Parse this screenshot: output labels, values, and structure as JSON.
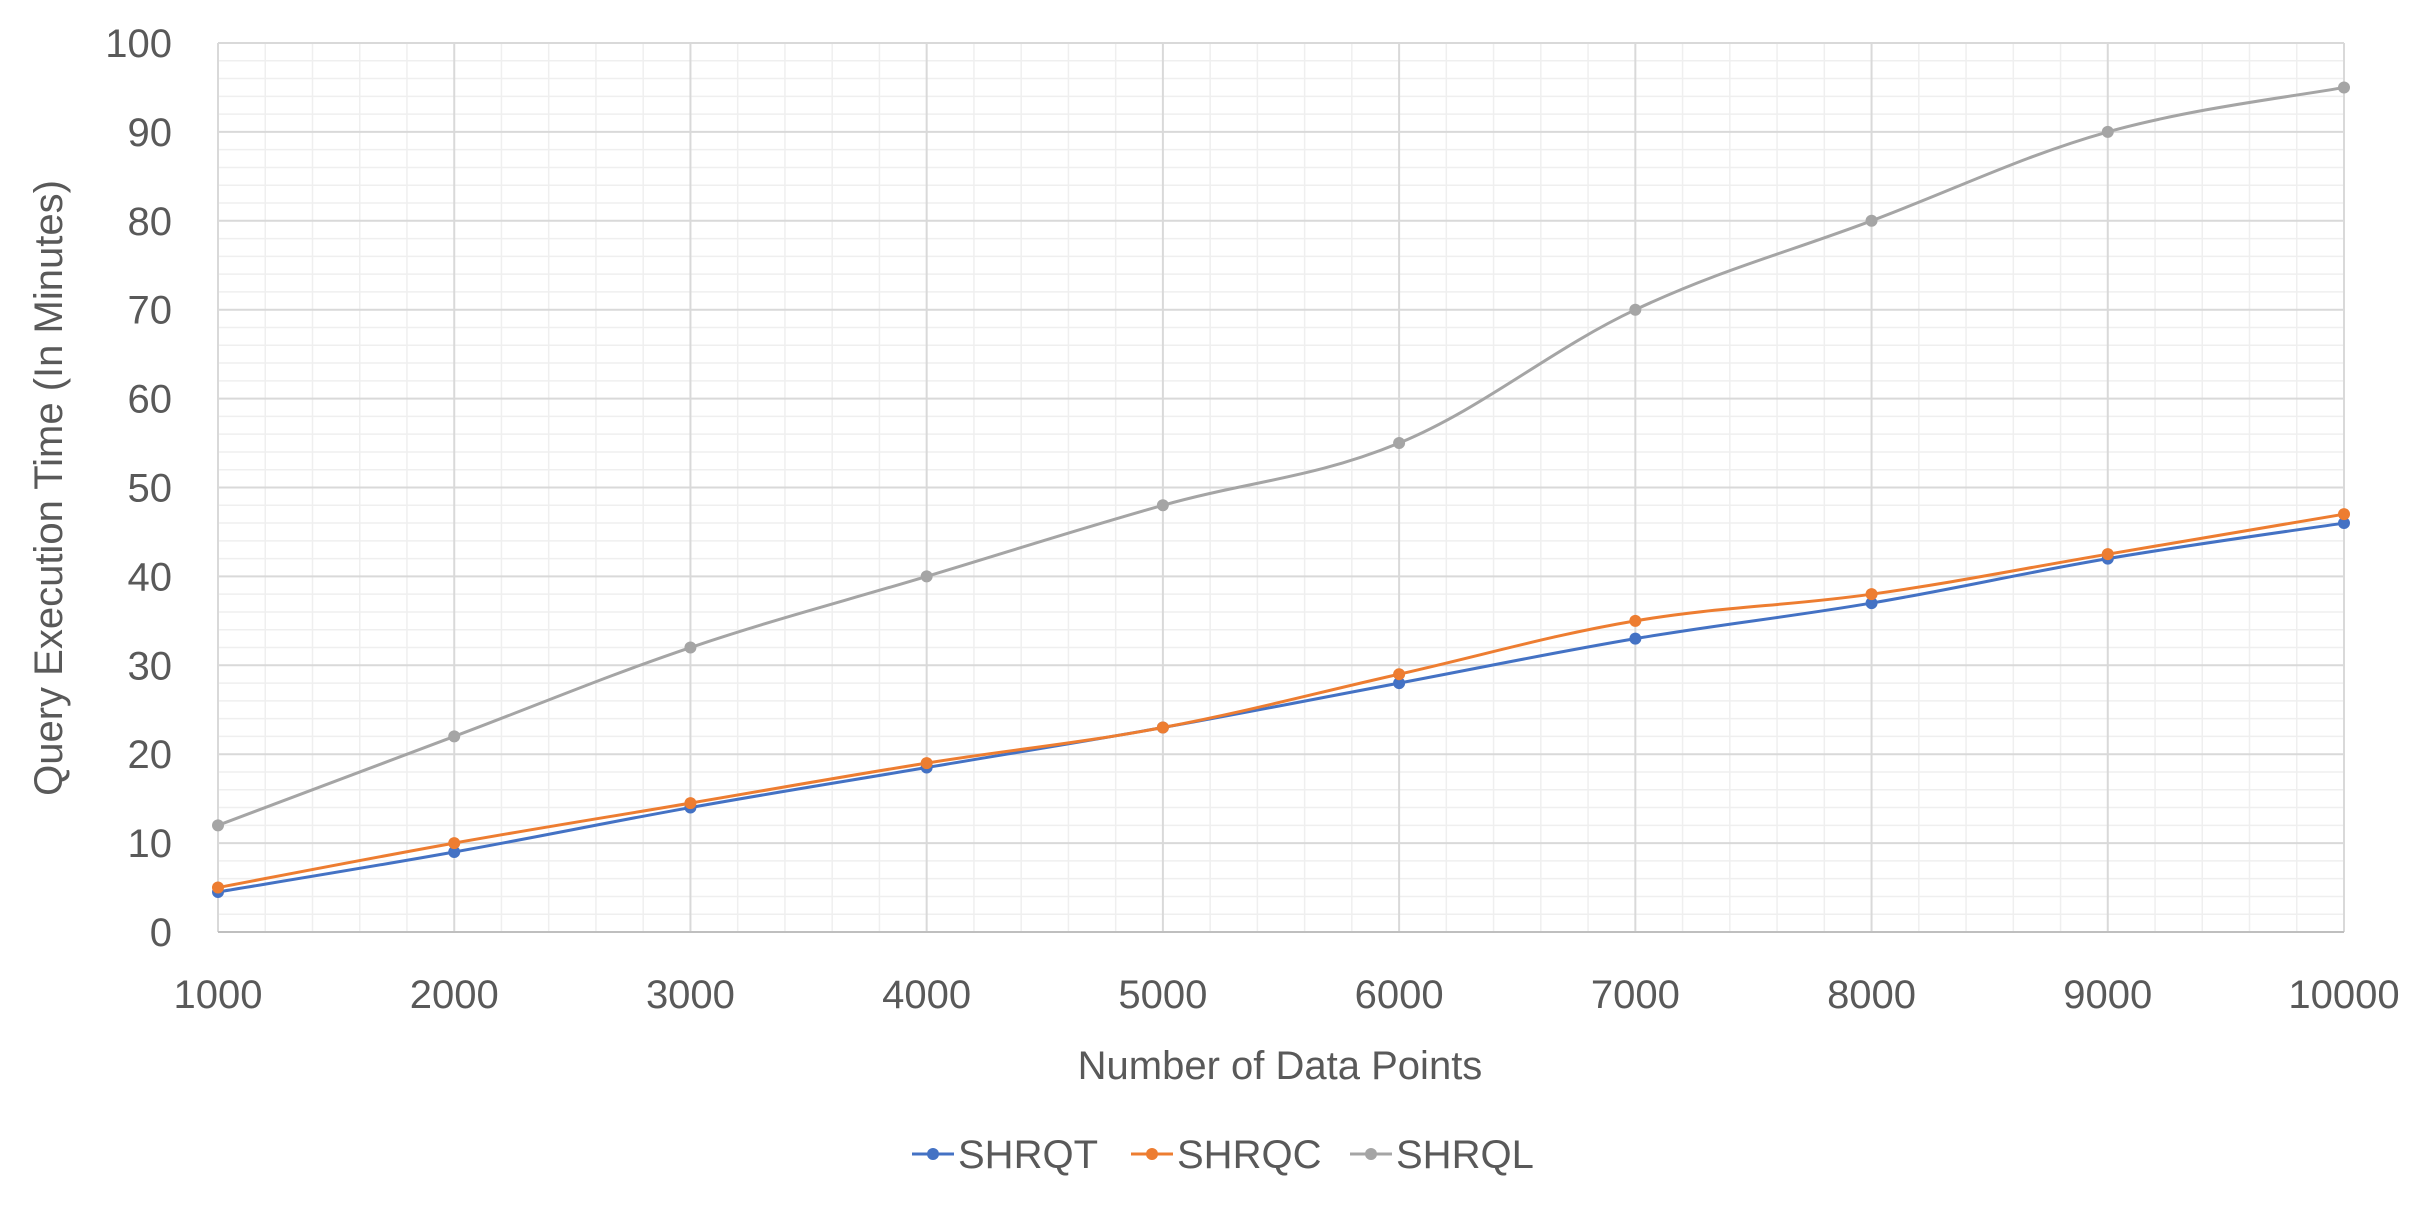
{
  "chart_data": {
    "type": "line",
    "title": "",
    "xlabel": "Number of Data Points",
    "ylabel": "Query Execution Time (In Minutes)",
    "x": [
      1000,
      2000,
      3000,
      4000,
      5000,
      6000,
      7000,
      8000,
      9000,
      10000
    ],
    "xlim": [
      1000,
      10000
    ],
    "ylim": [
      0,
      100
    ],
    "x_ticks": [
      "1000",
      "2000",
      "3000",
      "4000",
      "5000",
      "6000",
      "7000",
      "8000",
      "9000",
      "10000"
    ],
    "y_ticks": [
      "0",
      "10",
      "20",
      "30",
      "40",
      "50",
      "60",
      "70",
      "80",
      "90",
      "100"
    ],
    "grid": true,
    "minor_grid": true,
    "legend_position": "bottom",
    "series": [
      {
        "name": "SHRQT",
        "color": "#4472C4",
        "values": [
          4.5,
          9,
          14,
          18.5,
          23,
          28,
          33,
          37,
          42,
          46
        ]
      },
      {
        "name": "SHRQC",
        "color": "#ED7D31",
        "values": [
          5,
          10,
          14.5,
          19,
          23,
          29,
          35,
          38,
          42.5,
          47
        ]
      },
      {
        "name": "SHRQL",
        "color": "#A5A5A5",
        "values": [
          12,
          22,
          32,
          40,
          48,
          55,
          70,
          80,
          90,
          95
        ]
      }
    ]
  }
}
